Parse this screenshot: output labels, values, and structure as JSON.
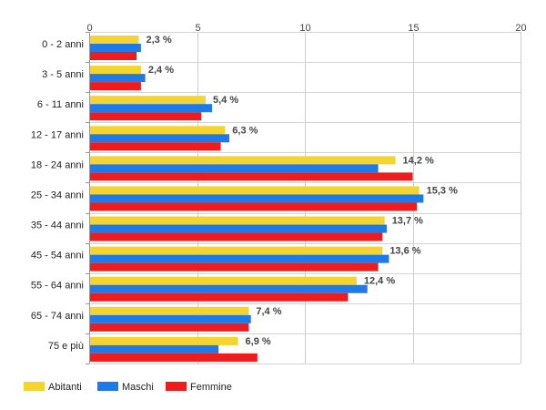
{
  "chart_data": {
    "type": "bar",
    "orientation": "horizontal",
    "categories": [
      "0 - 2 anni",
      "3 - 5 anni",
      "6 - 11 anni",
      "12 - 17 anni",
      "18 - 24 anni",
      "25 - 34 anni",
      "35 - 44 anni",
      "45 - 54 anni",
      "55 - 64 anni",
      "65 - 74 anni",
      "75 e più"
    ],
    "series": [
      {
        "name": "Abitanti",
        "color": "#f5d430",
        "values": [
          2.3,
          2.4,
          5.4,
          6.3,
          14.2,
          15.3,
          13.7,
          13.6,
          12.4,
          7.4,
          6.9
        ]
      },
      {
        "name": "Maschi",
        "color": "#1e7ae8",
        "values": [
          2.4,
          2.6,
          5.7,
          6.5,
          13.4,
          15.5,
          13.8,
          13.9,
          12.9,
          7.5,
          6.0
        ]
      },
      {
        "name": "Femmine",
        "color": "#ee1c1c",
        "values": [
          2.2,
          2.4,
          5.2,
          6.1,
          15.0,
          15.2,
          13.6,
          13.4,
          12.0,
          7.4,
          7.8
        ]
      }
    ],
    "data_labels": [
      "2,3 %",
      "2,4 %",
      "5,4 %",
      "6,3 %",
      "14,2 %",
      "15,3 %",
      "13,7 %",
      "13,6 %",
      "12,4 %",
      "7,4 %",
      "6,9 %"
    ],
    "x_ticks": [
      "0",
      "5",
      "10",
      "15",
      "20"
    ],
    "xlim": [
      0,
      20
    ],
    "title": "",
    "xlabel": "",
    "ylabel": "",
    "grid": true,
    "legend_position": "bottom-left"
  }
}
